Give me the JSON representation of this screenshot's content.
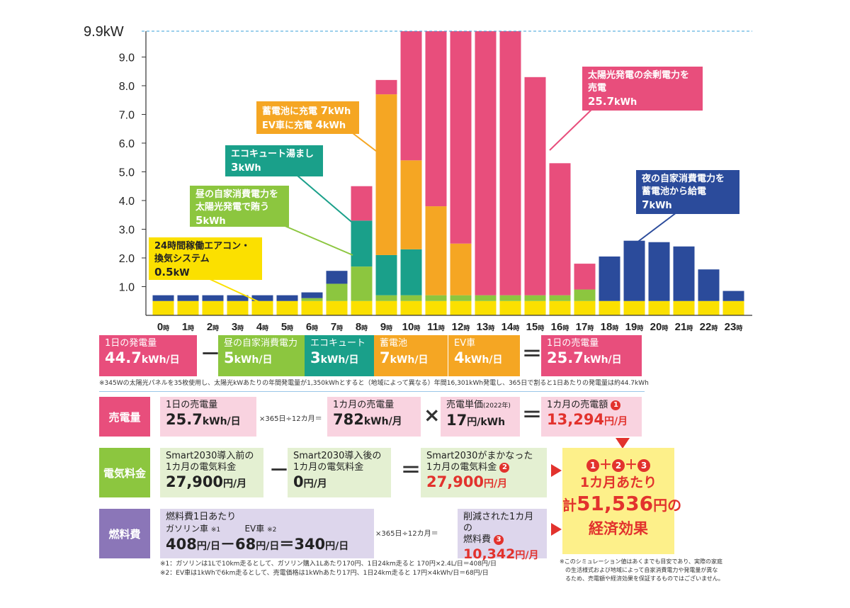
{
  "chart_data": {
    "type": "bar",
    "stacked": true,
    "ylabel_top": "9.9kW",
    "yticks": [
      "1.0",
      "2.0",
      "3.0",
      "4.0",
      "5.0",
      "6.0",
      "7.0",
      "8.0",
      "9.0"
    ],
    "ylim": [
      0,
      9.9
    ],
    "categories": [
      "0時",
      "1時",
      "2時",
      "3時",
      "4時",
      "5時",
      "6時",
      "7時",
      "8時",
      "9時",
      "10時",
      "11時",
      "12時",
      "13時",
      "14時",
      "15時",
      "16時",
      "17時",
      "18時",
      "19時",
      "20時",
      "21時",
      "22時",
      "23時"
    ],
    "series": [
      {
        "name": "24時間稼働エアコン・換気システム",
        "color": "#fbe000",
        "values": [
          0.5,
          0.5,
          0.5,
          0.5,
          0.5,
          0.5,
          0.5,
          0.5,
          0.5,
          0.5,
          0.5,
          0.5,
          0.5,
          0.5,
          0.5,
          0.5,
          0.5,
          0.5,
          0.5,
          0.5,
          0.5,
          0.5,
          0.5,
          0.5
        ]
      },
      {
        "name": "昼の自家消費電力",
        "color": "#8cc63f",
        "values": [
          0,
          0,
          0,
          0,
          0,
          0,
          0.1,
          0.6,
          1.2,
          0.2,
          0.2,
          0.2,
          0.2,
          0.2,
          0.2,
          0.2,
          0.2,
          0.4,
          0,
          0,
          0,
          0,
          0,
          0
        ]
      },
      {
        "name": "エコキュート湯まし",
        "color": "#1aa08a",
        "values": [
          0,
          0,
          0,
          0,
          0,
          0,
          0,
          0,
          1.6,
          1.4,
          1.6,
          0,
          0,
          0,
          0,
          0,
          0,
          0,
          0,
          0,
          0,
          0,
          0,
          0
        ]
      },
      {
        "name": "蓄電池・EV車充電",
        "color": "#f5a623",
        "values": [
          0,
          0,
          0,
          0,
          0,
          0,
          0,
          0,
          0,
          5.6,
          3.1,
          3.1,
          1.8,
          0,
          0,
          0,
          0,
          0,
          0,
          0,
          0,
          0,
          0,
          0
        ]
      },
      {
        "name": "太陽光発電の余剰電力を売電",
        "color": "#e84e7c",
        "values": [
          0,
          0,
          0,
          0,
          0,
          0,
          0,
          0,
          1.2,
          0.5,
          4.5,
          6.1,
          7.4,
          9.2,
          9.2,
          7.6,
          4.6,
          0.9,
          0,
          0,
          0,
          0,
          0,
          0
        ]
      },
      {
        "name": "夜の自家消費電力を蓄電池から給電",
        "color": "#2b4b9b",
        "values": [
          0.2,
          0.2,
          0.2,
          0.2,
          0.2,
          0.2,
          0.2,
          0.45,
          0,
          0,
          0,
          0,
          0,
          0,
          0,
          0,
          0,
          0,
          1.55,
          2.1,
          2.05,
          1.9,
          1.1,
          0.35
        ]
      }
    ],
    "annotations": {
      "aircon": {
        "l1": "24時間稼働エアコン・",
        "l2": "換気システム",
        "v": "0.5",
        "u": "kW"
      },
      "selfuse": {
        "l1": "昼の自家消費電力を",
        "l2": "太陽光発電で賄う",
        "v": "5",
        "u": "kWh"
      },
      "eco": {
        "l1": "エコキュート湯まし",
        "v": "3",
        "u": "kWh"
      },
      "charge": {
        "l1": "蓄電池に充電 ",
        "v1": "7",
        "u1": "kWh",
        "l2": "EV車に充電 ",
        "v2": "4",
        "u2": "kWh"
      },
      "sell": {
        "l1": "太陽光発電の余剰電力を",
        "l2": "売電",
        "v": "25.7",
        "u": "kWh"
      },
      "night": {
        "l1": "夜の自家消費電力を",
        "l2": "蓄電池から給電",
        "v": "7",
        "u": "kWh"
      }
    }
  },
  "row1": {
    "gen": {
      "label": "1日の発電量",
      "value": "44.7",
      "unit": "kWh/日"
    },
    "self": {
      "label": "昼の自家消費電力",
      "value": "5",
      "unit": "kWh/日"
    },
    "eco": {
      "label": "エコキュート",
      "value": "3",
      "unit": "kWh/日"
    },
    "bat": {
      "label": "蓄電池",
      "value": "7",
      "unit": "kWh/日"
    },
    "ev": {
      "label": "EV車",
      "value": "4",
      "unit": "kWh/日"
    },
    "sell": {
      "label": "1日の売電量",
      "value": "25.7",
      "unit": "kWh/日"
    },
    "minus": "－",
    "equals": "＝"
  },
  "note1": "※345Wの太陽光パネルを35枚使用し、太陽光kWあたりの年間発電量が1,350kWhとすると（地域によって異なる）年間16,301kWh発電し、365日で割ると1日あたりの発電量は約44.7kWh",
  "sales": {
    "cat": "売電量",
    "daily": {
      "label": "1日の売電量",
      "value": "25.7",
      "unit": "kWh/日"
    },
    "mult": "×365日÷12カ月＝",
    "monthly": {
      "label": "1カ月の売電量",
      "value": "782",
      "unit": "kWh/月"
    },
    "times": "×",
    "price": {
      "label": "売電単価",
      "label_small": "(2022年)",
      "value": "17",
      "unit": "円/kWh"
    },
    "eq": "＝",
    "amount": {
      "label": "1カ月の売電額",
      "badge": "1",
      "value": "13,294",
      "unit": "円/月"
    }
  },
  "elec": {
    "cat": "電気料金",
    "before": {
      "l1": "Smart2030導入前の",
      "l2": "1カ月の電気料金",
      "value": "27,900",
      "unit": "円/月"
    },
    "minus": "－",
    "after": {
      "l1": "Smart2030導入後の",
      "l2": "1カ月の電気料金",
      "value": "0",
      "unit": "円/月"
    },
    "eq": "＝",
    "covered": {
      "l1": "Smart2030がまかなった",
      "l2": "1カ月の電気料金",
      "badge": "2",
      "value": "27,900",
      "unit": "円/月"
    }
  },
  "fuel": {
    "cat": "燃料費",
    "perday": "燃料費1日あたり",
    "gas": "ガソリン車",
    "gas_mark": "※1",
    "ev": "EV車",
    "ev_mark": "※2",
    "v1": "408",
    "u1": "円/日",
    "op1": "－",
    "v2": "68",
    "u2": "円/日",
    "op2": "＝",
    "v3": "340",
    "u3": "円/日",
    "mult": "×365日÷12カ月＝",
    "saved": {
      "l1": "削減された1カ月の",
      "l2": "燃料費",
      "badge": "3",
      "value": "10,342",
      "unit": "円/月"
    }
  },
  "total": {
    "b1": "1",
    "plus1": "＋",
    "b2": "2",
    "plus2": "＋",
    "b3": "3",
    "l1": "1カ月あたり",
    "pre": "計",
    "value": "51,536",
    "unit": "円",
    "post": "の",
    "l3": "経済効果"
  },
  "notes_fuel": [
    "※1：ガソリンは1Lで10km走るとして、ガソリン購入1Lあたり170円、1日24km走ると 170円×2.4L/日＝408円/日",
    "※2：EV車は1kWhで6km走るとして、売電価格は1kWhあたり17円、1日24km走ると 17円×4kWh/日＝68円/日"
  ],
  "notes_sim": [
    "※このシミュレーション値はあくまでも目安であり、実際の家庭",
    "の生活様式および地域によって自家消費電力や発電量が異な",
    "るため、売電額や経済効果を保証するものではございません。"
  ],
  "colors": {
    "pink": "#e84e7c",
    "green": "#8cc63f",
    "teal": "#1aa08a",
    "orange": "#f5a623",
    "navy": "#2b4b9b",
    "yellow": "#fbe000"
  }
}
